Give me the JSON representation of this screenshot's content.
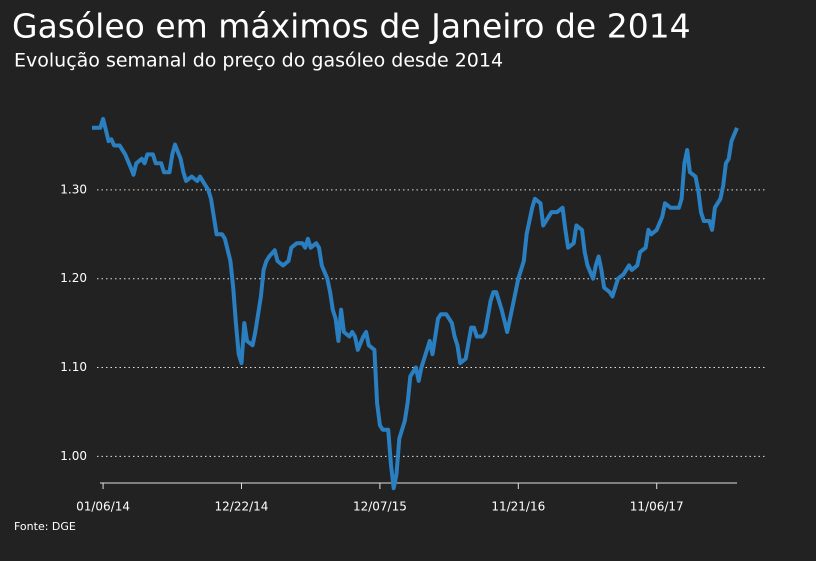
{
  "chart_data": {
    "type": "line",
    "title": "Gasóleo em máximos de Janeiro de 2014",
    "subtitle": "Evolução semanal do preço do gasóleo desde 2014",
    "source": "Fonte: DGE",
    "color": "#2a7fc1",
    "grid": true,
    "xlim": [
      -4,
      229
    ],
    "ylim": [
      0.97,
      1.39
    ],
    "xticks": [
      {
        "value": 0,
        "label": "01/06/14"
      },
      {
        "value": 50,
        "label": "12/22/14"
      },
      {
        "value": 100,
        "label": "12/07/15"
      },
      {
        "value": 150,
        "label": "11/21/16"
      },
      {
        "value": 200,
        "label": "11/06/17"
      }
    ],
    "yticks": [
      {
        "value": 1.0,
        "label": "1.00"
      },
      {
        "value": 1.1,
        "label": "1.10"
      },
      {
        "value": 1.2,
        "label": "1.20"
      },
      {
        "value": 1.3,
        "label": "1.30"
      }
    ],
    "x": [
      -4,
      -1,
      0,
      2,
      3,
      4,
      6,
      8,
      10,
      11,
      12,
      14,
      15,
      16,
      18,
      19,
      21,
      22,
      24,
      25,
      26,
      28,
      29,
      30,
      32,
      34,
      35,
      36,
      38,
      39,
      40,
      41,
      43,
      44,
      46,
      47,
      48,
      49,
      50,
      51,
      52,
      54,
      55,
      57,
      58,
      59,
      60,
      62,
      63,
      65,
      67,
      68,
      70,
      72,
      73,
      74,
      75,
      77,
      78,
      79,
      81,
      82,
      83,
      84,
      85,
      86,
      87,
      89,
      90,
      91,
      92,
      94,
      95,
      96,
      98,
      99,
      100,
      101,
      103,
      104,
      105,
      106,
      107,
      109,
      110,
      111,
      113,
      114,
      115,
      117,
      118,
      119,
      121,
      122,
      124,
      126,
      127,
      128,
      129,
      131,
      133,
      134,
      135,
      137,
      138,
      140,
      141,
      142,
      144,
      146,
      148,
      150,
      152,
      153,
      155,
      156,
      158,
      159,
      160,
      162,
      164,
      166,
      167,
      168,
      170,
      171,
      173,
      174,
      175,
      177,
      178,
      179,
      180,
      181,
      183,
      184,
      186,
      188,
      190,
      191,
      193,
      194,
      196,
      197,
      198,
      200,
      202,
      203,
      205,
      206,
      208,
      209,
      210,
      211,
      212,
      214,
      215,
      216,
      217,
      219,
      220,
      221,
      222,
      223,
      224,
      225,
      226,
      227,
      229
    ],
    "values": [
      1.37,
      1.37,
      1.38,
      1.355,
      1.357,
      1.35,
      1.35,
      1.34,
      1.325,
      1.317,
      1.33,
      1.335,
      1.33,
      1.34,
      1.34,
      1.33,
      1.33,
      1.32,
      1.32,
      1.34,
      1.351,
      1.335,
      1.32,
      1.31,
      1.315,
      1.31,
      1.315,
      1.31,
      1.3,
      1.29,
      1.27,
      1.25,
      1.25,
      1.245,
      1.22,
      1.19,
      1.15,
      1.115,
      1.105,
      1.15,
      1.13,
      1.125,
      1.14,
      1.18,
      1.21,
      1.22,
      1.225,
      1.232,
      1.22,
      1.215,
      1.22,
      1.235,
      1.24,
      1.24,
      1.235,
      1.245,
      1.235,
      1.24,
      1.235,
      1.215,
      1.2,
      1.185,
      1.165,
      1.155,
      1.13,
      1.165,
      1.14,
      1.135,
      1.14,
      1.135,
      1.12,
      1.135,
      1.14,
      1.125,
      1.12,
      1.06,
      1.035,
      1.03,
      1.03,
      0.99,
      0.964,
      0.98,
      1.02,
      1.04,
      1.06,
      1.09,
      1.1,
      1.085,
      1.1,
      1.12,
      1.13,
      1.115,
      1.155,
      1.16,
      1.16,
      1.15,
      1.135,
      1.125,
      1.105,
      1.11,
      1.145,
      1.145,
      1.135,
      1.135,
      1.14,
      1.175,
      1.185,
      1.185,
      1.165,
      1.14,
      1.17,
      1.2,
      1.22,
      1.25,
      1.28,
      1.29,
      1.285,
      1.26,
      1.265,
      1.275,
      1.275,
      1.28,
      1.255,
      1.235,
      1.24,
      1.26,
      1.255,
      1.23,
      1.215,
      1.2,
      1.215,
      1.225,
      1.21,
      1.19,
      1.185,
      1.18,
      1.2,
      1.205,
      1.215,
      1.21,
      1.215,
      1.23,
      1.235,
      1.255,
      1.25,
      1.255,
      1.27,
      1.285,
      1.28,
      1.28,
      1.28,
      1.29,
      1.33,
      1.345,
      1.32,
      1.315,
      1.3,
      1.275,
      1.265,
      1.265,
      1.255,
      1.28,
      1.285,
      1.29,
      1.305,
      1.33,
      1.335,
      1.355,
      1.37
    ]
  }
}
